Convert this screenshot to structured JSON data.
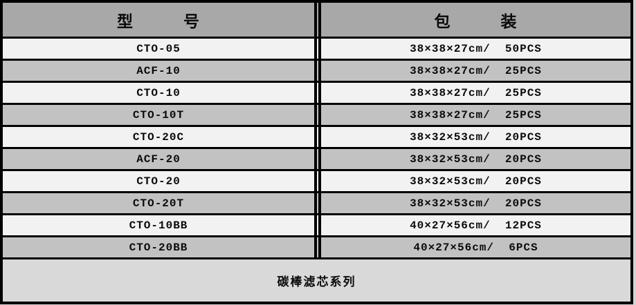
{
  "table": {
    "header": {
      "model": "型　　　号",
      "packaging": "包　　　装"
    },
    "rows": [
      {
        "model": "CTO-05",
        "packaging": "38×38×27cm/  50PCS"
      },
      {
        "model": "ACF-10",
        "packaging": "38×38×27cm/  25PCS"
      },
      {
        "model": "CTO-10",
        "packaging": "38×38×27cm/  25PCS"
      },
      {
        "model": "CTO-10T",
        "packaging": "38×38×27cm/  25PCS"
      },
      {
        "model": "CTO-20C",
        "packaging": "38×32×53cm/  20PCS"
      },
      {
        "model": "ACF-20",
        "packaging": "38×32×53cm/  20PCS"
      },
      {
        "model": "CTO-20",
        "packaging": "38×32×53cm/  20PCS"
      },
      {
        "model": "CTO-20T",
        "packaging": "38×32×53cm/  20PCS"
      },
      {
        "model": "CTO-10BB",
        "packaging": "40×27×56cm/  12PCS"
      },
      {
        "model": "CTO-20BB",
        "packaging": "40×27×56cm/  6PCS"
      }
    ],
    "footer": "碳棒滤芯系列"
  },
  "colors": {
    "border": "#000000",
    "header_bg": "#a8a8a8",
    "row_light": "#f2f2f2",
    "row_dark": "#c2c2c2",
    "footer_bg": "#d9d9d9"
  }
}
